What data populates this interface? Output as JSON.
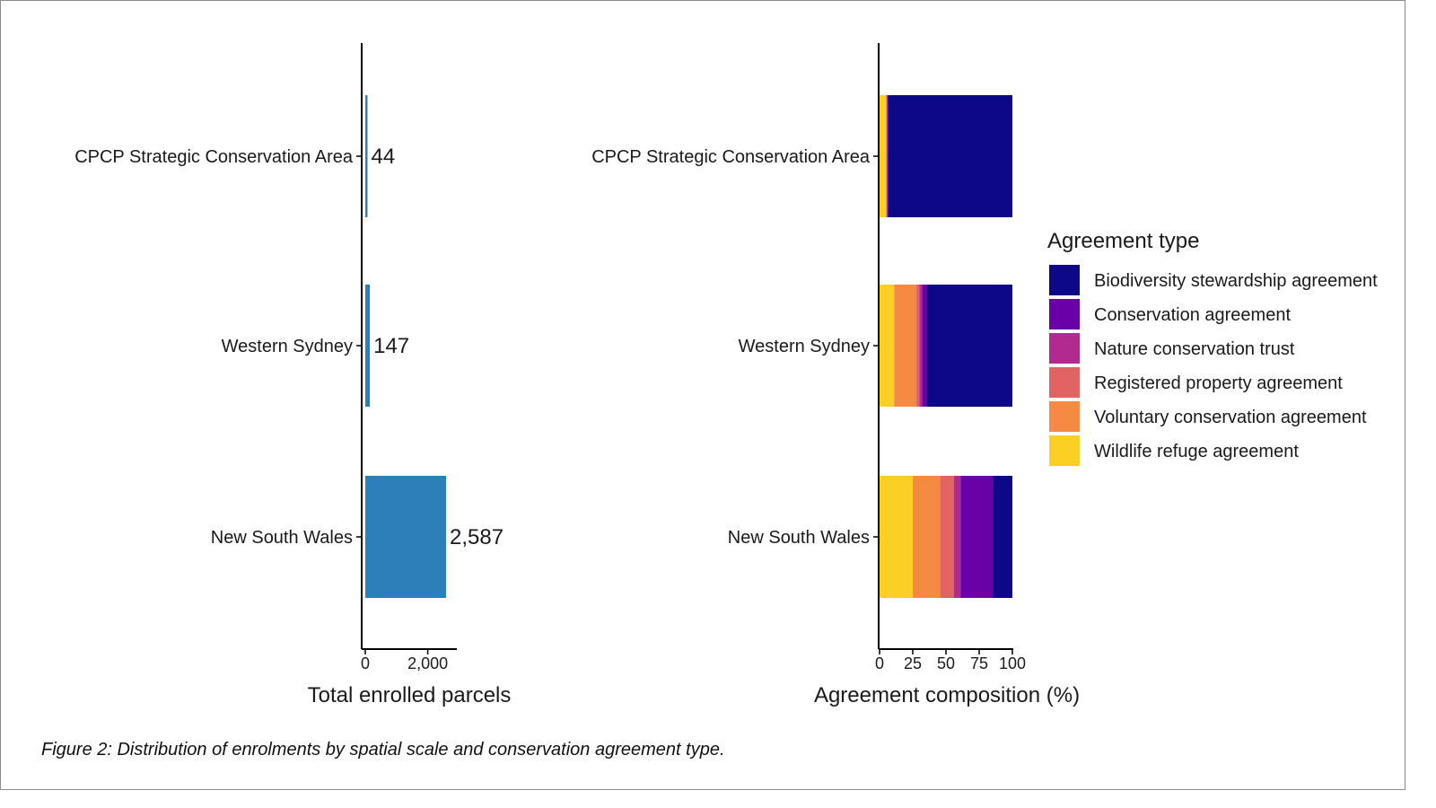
{
  "caption": "Figure 2: Distribution of  enrolments by spatial scale and conservation agreement type.",
  "colors": {
    "bar": "#2c7fb8",
    "axis": "#000000",
    "agreement_types": [
      "#0d0887",
      "#6a00a8",
      "#b12a90",
      "#e16462",
      "#fca636",
      "#f0f921"
    ]
  },
  "chart_data": [
    {
      "type": "bar",
      "orientation": "horizontal",
      "categories": [
        "CPCP Strategic Conservation Area",
        "Western Sydney",
        "New South Wales"
      ],
      "values": [
        44,
        147,
        2587
      ],
      "value_labels": [
        "44",
        "147",
        "2,587"
      ],
      "xlabel": "Total enrolled parcels",
      "ylabel": "",
      "xlim": [
        0,
        2900
      ],
      "xticks": [
        0,
        2000
      ],
      "xtick_labels": [
        "0",
        "2,000"
      ],
      "grid": false
    },
    {
      "type": "bar",
      "orientation": "horizontal",
      "stacked": true,
      "categories": [
        "CPCP Strategic Conservation Area",
        "Western Sydney",
        "New South Wales"
      ],
      "xlabel": "Agreement composition (%)",
      "ylabel": "",
      "xlim": [
        0,
        100
      ],
      "xticks": [
        0,
        25,
        50,
        75,
        100
      ],
      "xtick_labels": [
        "0",
        "25",
        "50",
        "75",
        "100"
      ],
      "grid": false,
      "legend_title": "Agreement type",
      "legend_position": "right",
      "stack_order": [
        "Wildlife refuge agreement",
        "Voluntary conservation agreement",
        "Registered property agreement",
        "Nature conservation trust",
        "Conservation agreement",
        "Biodiversity stewardship agreement"
      ],
      "series": [
        {
          "name": "Biodiversity stewardship agreement",
          "color": "#0d0887",
          "values": [
            93.5,
            64.5,
            14.5
          ]
        },
        {
          "name": "Conservation agreement",
          "color": "#6a00a8",
          "values": [
            0.5,
            3.5,
            24.5
          ]
        },
        {
          "name": "Nature conservation trust",
          "color": "#b12a90",
          "values": [
            0.5,
            2.0,
            5.0
          ]
        },
        {
          "name": "Registered property agreement",
          "color": "#e16462",
          "values": [
            0.5,
            2.5,
            10.5
          ]
        },
        {
          "name": "Voluntary conservation agreement",
          "color": "#f58a43",
          "values": [
            0.0,
            16.5,
            20.5
          ]
        },
        {
          "name": "Wildlife refuge agreement",
          "color": "#fccf25",
          "values": [
            5.0,
            11.0,
            25.0
          ]
        }
      ]
    }
  ]
}
